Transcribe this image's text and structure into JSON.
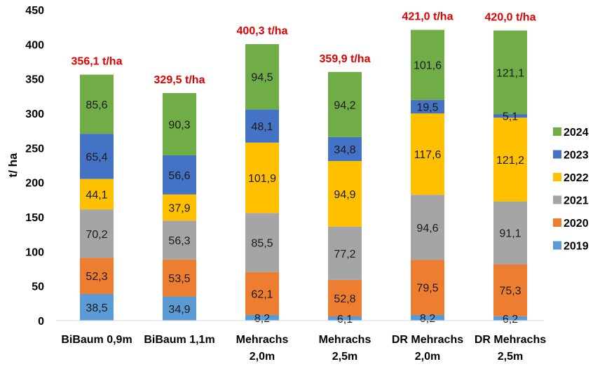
{
  "chart_data": {
    "type": "bar",
    "stacked": true,
    "ylabel": "t/ ha",
    "ylim": [
      0,
      450
    ],
    "yticks": [
      "0",
      "50",
      "100",
      "150",
      "200",
      "250",
      "300",
      "350",
      "400",
      "450"
    ],
    "grid": false,
    "legend_position": "right",
    "categories": [
      [
        "BiBaum 0,9m"
      ],
      [
        "BiBaum 1,1m"
      ],
      [
        "Mehrachs",
        "2,0m"
      ],
      [
        "Mehrachs",
        "2,5m"
      ],
      [
        "DR Mehrachs",
        "2,0m"
      ],
      [
        "DR Mehrachs",
        "2,5m"
      ]
    ],
    "series": [
      {
        "name": "2019",
        "color": "#5b9bd5",
        "values": [
          38.5,
          34.9,
          8.2,
          6.1,
          8.2,
          6.2
        ],
        "labels": [
          "38,5",
          "34,9",
          "8,2",
          "6,1",
          "8,2",
          "6,2"
        ]
      },
      {
        "name": "2020",
        "color": "#ed7d31",
        "values": [
          52.3,
          53.5,
          62.1,
          52.8,
          79.5,
          75.3
        ],
        "labels": [
          "52,3",
          "53,5",
          "62,1",
          "52,8",
          "79,5",
          "75,3"
        ]
      },
      {
        "name": "2021",
        "color": "#a5a5a5",
        "values": [
          70.2,
          56.3,
          85.5,
          77.2,
          94.6,
          91.1
        ],
        "labels": [
          "70,2",
          "56,3",
          "85,5",
          "77,2",
          "94,6",
          "91,1"
        ]
      },
      {
        "name": "2022",
        "color": "#ffc000",
        "values": [
          44.1,
          37.9,
          101.9,
          94.9,
          117.6,
          121.2
        ],
        "labels": [
          "44,1",
          "37,9",
          "101,9",
          "94,9",
          "117,6",
          "121,2"
        ]
      },
      {
        "name": "2023",
        "color": "#4472c4",
        "values": [
          65.4,
          56.6,
          48.1,
          34.8,
          19.5,
          5.1
        ],
        "labels": [
          "65,4",
          "56,6",
          "48,1",
          "34,8",
          "19,5",
          "5,1"
        ]
      },
      {
        "name": "2024",
        "color": "#70ad47",
        "values": [
          85.6,
          90.3,
          94.5,
          94.2,
          101.6,
          121.1
        ],
        "labels": [
          "85,6",
          "90,3",
          "94,5",
          "94,2",
          "101,6",
          "121,1"
        ]
      }
    ],
    "totals": [
      356.1,
      329.5,
      400.3,
      359.9,
      421.0,
      420.0
    ],
    "total_labels": [
      "356,1 t/ha",
      "329,5 t/ha",
      "400,3 t/ha",
      "359,9 t/ha",
      "421,0 t/ha",
      "420,0 t/ha"
    ],
    "total_label_color": "#e00000"
  }
}
